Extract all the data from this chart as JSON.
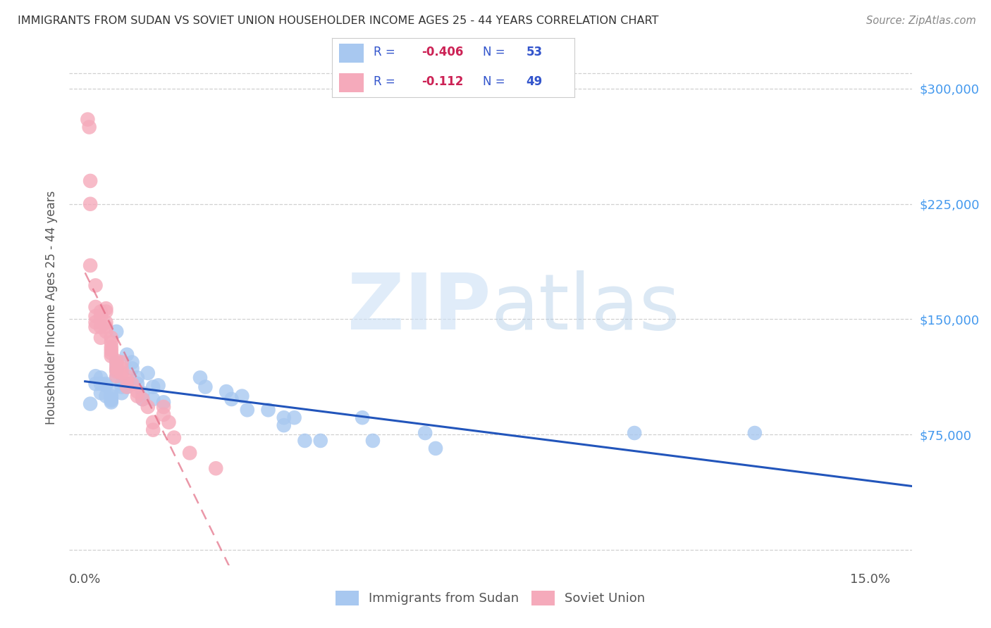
{
  "title": "IMMIGRANTS FROM SUDAN VS SOVIET UNION HOUSEHOLDER INCOME AGES 25 - 44 YEARS CORRELATION CHART",
  "source": "Source: ZipAtlas.com",
  "ylabel": "Householder Income Ages 25 - 44 years",
  "xlim": [
    -0.003,
    0.158
  ],
  "ylim": [
    -10000,
    325000
  ],
  "legend_sudan_label": "Immigrants from Sudan",
  "legend_soviet_label": "Soviet Union",
  "sudan_color": "#a8c8f0",
  "soviet_color": "#f5aabb",
  "sudan_line_color": "#2255bb",
  "soviet_line_color": "#e0607a",
  "sudan_x": [
    0.001,
    0.002,
    0.002,
    0.003,
    0.003,
    0.003,
    0.004,
    0.004,
    0.004,
    0.005,
    0.005,
    0.005,
    0.005,
    0.005,
    0.006,
    0.006,
    0.006,
    0.006,
    0.007,
    0.007,
    0.007,
    0.008,
    0.008,
    0.008,
    0.009,
    0.009,
    0.01,
    0.01,
    0.011,
    0.011,
    0.012,
    0.013,
    0.013,
    0.014,
    0.015,
    0.022,
    0.023,
    0.027,
    0.028,
    0.03,
    0.031,
    0.035,
    0.038,
    0.038,
    0.04,
    0.042,
    0.045,
    0.053,
    0.055,
    0.065,
    0.067,
    0.105,
    0.128
  ],
  "sudan_y": [
    95000,
    113000,
    108000,
    112000,
    102000,
    108000,
    100000,
    108000,
    107000,
    100000,
    102000,
    98000,
    97000,
    96000,
    112000,
    117000,
    122000,
    142000,
    108000,
    106000,
    102000,
    127000,
    108000,
    106000,
    122000,
    118000,
    112000,
    108000,
    102000,
    98000,
    115000,
    106000,
    98000,
    107000,
    96000,
    112000,
    106000,
    103000,
    98000,
    100000,
    91000,
    91000,
    86000,
    81000,
    86000,
    71000,
    71000,
    86000,
    71000,
    76000,
    66000,
    76000,
    76000
  ],
  "soviet_x": [
    0.0005,
    0.0008,
    0.001,
    0.001,
    0.001,
    0.002,
    0.002,
    0.002,
    0.002,
    0.002,
    0.003,
    0.003,
    0.003,
    0.003,
    0.004,
    0.004,
    0.004,
    0.004,
    0.004,
    0.005,
    0.005,
    0.005,
    0.005,
    0.005,
    0.005,
    0.006,
    0.006,
    0.006,
    0.006,
    0.006,
    0.007,
    0.007,
    0.007,
    0.008,
    0.008,
    0.008,
    0.009,
    0.01,
    0.01,
    0.011,
    0.012,
    0.013,
    0.013,
    0.015,
    0.015,
    0.016,
    0.017,
    0.02,
    0.025
  ],
  "soviet_y": [
    280000,
    275000,
    225000,
    240000,
    185000,
    172000,
    158000,
    152000,
    148000,
    145000,
    155000,
    152000,
    145000,
    138000,
    157000,
    155000,
    148000,
    145000,
    142000,
    138000,
    135000,
    132000,
    130000,
    128000,
    126000,
    123000,
    120000,
    118000,
    116000,
    113000,
    122000,
    118000,
    115000,
    113000,
    110000,
    106000,
    108000,
    103000,
    100000,
    98000,
    93000,
    83000,
    78000,
    93000,
    88000,
    83000,
    73000,
    63000,
    53000
  ],
  "grid_color": "#d0d0d0",
  "background_color": "#ffffff",
  "ytick_vals": [
    0,
    75000,
    150000,
    225000,
    300000
  ],
  "xtick_vals": [
    0.0,
    0.03,
    0.06,
    0.09,
    0.12,
    0.15
  ]
}
